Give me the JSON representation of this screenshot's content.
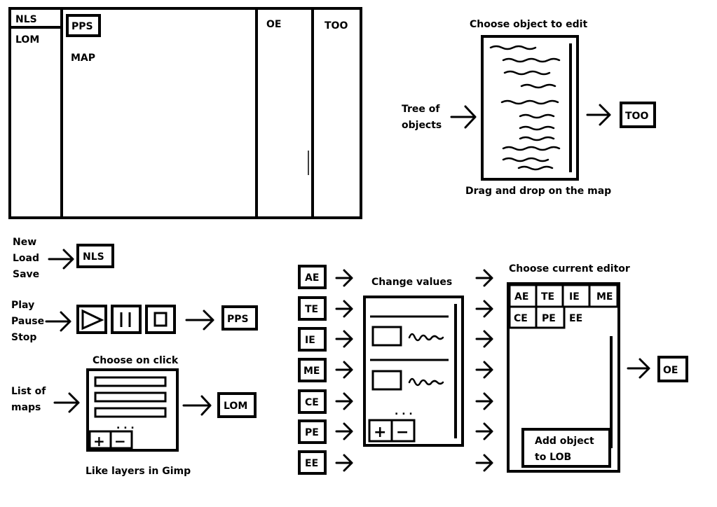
{
  "mockup": {
    "nls": "NLS",
    "lom": "LOM",
    "pps": "PPS",
    "map": "MAP",
    "oe": "OE",
    "too": "TOO"
  },
  "too_panel": {
    "title": "Choose object to edit",
    "tree_line1": "Tree of",
    "tree_line2": "objects",
    "footer": "Drag and drop on the map",
    "target": "TOO"
  },
  "nls_panel": {
    "actions": [
      "New",
      "Load",
      "Save"
    ],
    "target": "NLS"
  },
  "pps_panel": {
    "actions": [
      "Play",
      "Pause",
      "Stop"
    ],
    "target": "PPS"
  },
  "lom_panel": {
    "title": "Choose on click",
    "label_line1": "List of",
    "label_line2": "maps",
    "plus": "+",
    "minus": "−",
    "dots": ". . .",
    "footer": "Like layers in Gimp",
    "target": "LOM"
  },
  "oe_panel": {
    "editors": [
      "AE",
      "TE",
      "IE",
      "ME",
      "CE",
      "PE",
      "EE"
    ],
    "change_values": "Change values",
    "choose_editor": "Choose current editor",
    "tabs": [
      "AE",
      "TE",
      "IE",
      "ME",
      "CE",
      "PE",
      "EE"
    ],
    "plus": "+",
    "minus": "−",
    "dots": ". . .",
    "add_line1": "Add object",
    "add_line2": "to LOB",
    "target": "OE"
  }
}
